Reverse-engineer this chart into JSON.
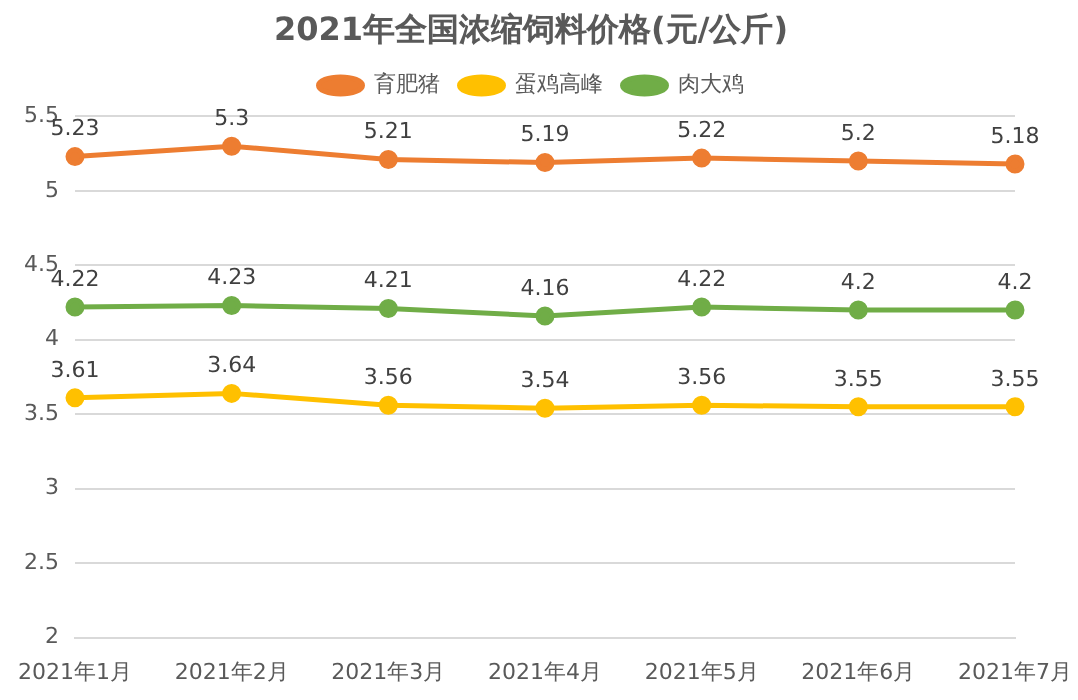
{
  "chart_data": {
    "type": "line",
    "title": "2021年全国浓缩饲料价格(元/公斤)",
    "categories": [
      "2021年1月",
      "2021年2月",
      "2021年3月",
      "2021年4月",
      "2021年5月",
      "2021年6月",
      "2021年7月"
    ],
    "series": [
      {
        "name": "育肥猪",
        "color": "#ed7d31",
        "values": [
          5.23,
          5.3,
          5.21,
          5.19,
          5.22,
          5.2,
          5.18
        ]
      },
      {
        "name": "蛋鸡高峰",
        "color": "#ffc000",
        "values": [
          3.61,
          3.64,
          3.56,
          3.54,
          3.56,
          3.55,
          3.55
        ]
      },
      {
        "name": "肉大鸡",
        "color": "#70ad47",
        "values": [
          4.22,
          4.23,
          4.21,
          4.16,
          4.22,
          4.2,
          4.2
        ]
      }
    ],
    "ylim": [
      2,
      5.5
    ],
    "yticks": [
      2,
      2.5,
      3,
      3.5,
      4,
      4.5,
      5,
      5.5
    ],
    "grid": "y",
    "legend": "top",
    "marker": "circle",
    "line_style": "solid",
    "data_labels": true
  }
}
